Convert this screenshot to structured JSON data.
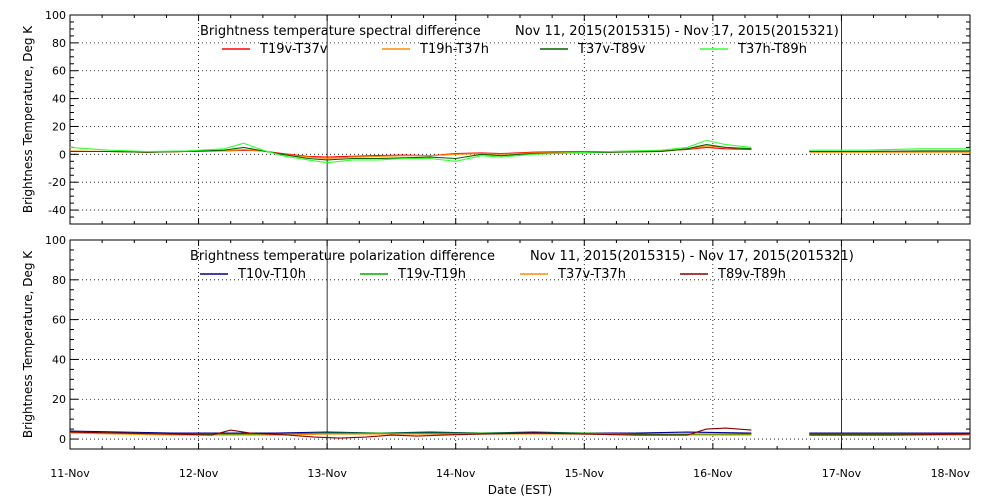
{
  "chart_data": [
    {
      "type": "line",
      "title": "Brightness temperature spectral difference",
      "date_range": "Nov 11, 2015(2015315) - Nov 17, 2015(2015321)",
      "ylabel": "Brightness Temperature, Deg K",
      "xlabel": "",
      "ylim": [
        -50,
        100
      ],
      "yticks": [
        -40,
        -20,
        0,
        20,
        40,
        60,
        80,
        100
      ],
      "xlim": [
        0,
        7
      ],
      "grid": true,
      "series": [
        {
          "name": "T19v-T37v",
          "color": "#ff0000",
          "segments": [
            [
              [
                0.0,
                2
              ],
              [
                0.3,
                2
              ],
              [
                0.6,
                1.5
              ],
              [
                0.9,
                2
              ],
              [
                1.2,
                2.5
              ],
              [
                1.35,
                3
              ],
              [
                1.5,
                2.5
              ],
              [
                1.65,
                0.5
              ],
              [
                1.85,
                -1.5
              ],
              [
                2.0,
                -2
              ],
              [
                2.15,
                -1.5
              ],
              [
                2.35,
                -1
              ],
              [
                2.6,
                -0.5
              ],
              [
                2.8,
                -1
              ],
              [
                3.0,
                0.5
              ],
              [
                3.2,
                1
              ],
              [
                3.35,
                0.5
              ],
              [
                3.6,
                1.5
              ],
              [
                3.9,
                2
              ],
              [
                4.2,
                2
              ],
              [
                4.6,
                2.5
              ],
              [
                4.8,
                3.5
              ],
              [
                4.95,
                5
              ],
              [
                5.1,
                4
              ],
              [
                5.3,
                3.5
              ]
            ],
            [
              [
                5.75,
                2
              ],
              [
                6.2,
                2
              ],
              [
                6.6,
                2
              ],
              [
                7.0,
                2
              ]
            ]
          ]
        },
        {
          "name": "T19h-T37h",
          "color": "#ff8c00",
          "segments": [
            [
              [
                0.0,
                2.5
              ],
              [
                0.3,
                2
              ],
              [
                0.6,
                1.5
              ],
              [
                0.9,
                2
              ],
              [
                1.2,
                2.5
              ],
              [
                1.35,
                3.5
              ],
              [
                1.5,
                2.5
              ],
              [
                1.65,
                0
              ],
              [
                1.85,
                -2
              ],
              [
                2.0,
                -3
              ],
              [
                2.2,
                -2
              ],
              [
                2.4,
                -1.5
              ],
              [
                2.6,
                -1
              ],
              [
                2.8,
                -1
              ],
              [
                3.0,
                0
              ],
              [
                3.2,
                0.5
              ],
              [
                3.35,
                0
              ],
              [
                3.6,
                1
              ],
              [
                3.9,
                1.5
              ],
              [
                4.2,
                1.5
              ],
              [
                4.6,
                2
              ],
              [
                4.8,
                4
              ],
              [
                4.95,
                6
              ],
              [
                5.1,
                5
              ],
              [
                5.3,
                4
              ]
            ],
            [
              [
                5.75,
                1.5
              ],
              [
                6.2,
                1.5
              ],
              [
                6.6,
                1.5
              ],
              [
                7.0,
                1.5
              ]
            ]
          ]
        },
        {
          "name": "T37v-T89v",
          "color": "#006400",
          "segments": [
            [
              [
                0.0,
                2
              ],
              [
                0.3,
                2
              ],
              [
                0.6,
                1.5
              ],
              [
                0.9,
                2
              ],
              [
                1.2,
                3
              ],
              [
                1.35,
                5
              ],
              [
                1.5,
                2.5
              ],
              [
                1.65,
                0
              ],
              [
                1.85,
                -3
              ],
              [
                2.0,
                -4
              ],
              [
                2.2,
                -3
              ],
              [
                2.4,
                -3
              ],
              [
                2.6,
                -2.5
              ],
              [
                2.8,
                -2
              ],
              [
                3.0,
                -3
              ],
              [
                3.2,
                0
              ],
              [
                3.35,
                -1
              ],
              [
                3.6,
                0.5
              ],
              [
                3.9,
                1
              ],
              [
                4.2,
                1.5
              ],
              [
                4.6,
                2
              ],
              [
                4.8,
                4
              ],
              [
                4.95,
                7
              ],
              [
                5.1,
                5
              ],
              [
                5.3,
                4
              ]
            ],
            [
              [
                5.75,
                2
              ],
              [
                6.2,
                2
              ],
              [
                6.6,
                2.5
              ],
              [
                7.0,
                2.5
              ]
            ]
          ]
        },
        {
          "name": "T37h-T89h",
          "color": "#33ff33",
          "segments": [
            [
              [
                0.0,
                5
              ],
              [
                0.3,
                3
              ],
              [
                0.6,
                2
              ],
              [
                0.9,
                2.5
              ],
              [
                1.2,
                4
              ],
              [
                1.35,
                8
              ],
              [
                1.5,
                3
              ],
              [
                1.65,
                -1
              ],
              [
                1.85,
                -4
              ],
              [
                2.0,
                -6
              ],
              [
                2.2,
                -4
              ],
              [
                2.4,
                -4
              ],
              [
                2.6,
                -3
              ],
              [
                2.8,
                -3
              ],
              [
                3.0,
                -5
              ],
              [
                3.2,
                -1
              ],
              [
                3.35,
                -2
              ],
              [
                3.6,
                0
              ],
              [
                3.9,
                1
              ],
              [
                4.2,
                2
              ],
              [
                4.6,
                3
              ],
              [
                4.8,
                5
              ],
              [
                4.95,
                10
              ],
              [
                5.1,
                7
              ],
              [
                5.3,
                5
              ]
            ],
            [
              [
                5.75,
                3
              ],
              [
                6.2,
                3
              ],
              [
                6.6,
                4
              ],
              [
                7.0,
                4
              ]
            ]
          ]
        }
      ]
    },
    {
      "type": "line",
      "title": "Brightness temperature polarization difference",
      "date_range": "Nov 11, 2015(2015315) - Nov 17, 2015(2015321)",
      "ylabel": "Brightness Temperature, Deg K",
      "xlabel": "Date (EST)",
      "ylim": [
        -5,
        100
      ],
      "yticks": [
        0,
        20,
        40,
        60,
        80,
        100
      ],
      "xlim": [
        0,
        7
      ],
      "xticks": [
        "11-Nov",
        "12-Nov",
        "13-Nov",
        "14-Nov",
        "15-Nov",
        "16-Nov",
        "17-Nov",
        "18-Nov"
      ],
      "grid": true,
      "series": [
        {
          "name": "T10v-T10h",
          "color": "#00008b",
          "segments": [
            [
              [
                0.0,
                4
              ],
              [
                0.4,
                3.5
              ],
              [
                0.8,
                3
              ],
              [
                1.2,
                3
              ],
              [
                1.6,
                3
              ],
              [
                2.0,
                3.5
              ],
              [
                2.4,
                3
              ],
              [
                2.8,
                3.5
              ],
              [
                3.2,
                3
              ],
              [
                3.6,
                3.5
              ],
              [
                4.0,
                3
              ],
              [
                4.4,
                3
              ],
              [
                4.8,
                3.5
              ],
              [
                5.3,
                3
              ]
            ],
            [
              [
                5.75,
                3
              ],
              [
                6.4,
                3
              ],
              [
                7.0,
                3
              ]
            ]
          ]
        },
        {
          "name": "T19v-T19h",
          "color": "#00aa00",
          "segments": [
            [
              [
                0.0,
                3.5
              ],
              [
                0.4,
                3
              ],
              [
                0.8,
                2.5
              ],
              [
                1.2,
                2.5
              ],
              [
                1.6,
                2.5
              ],
              [
                2.0,
                3
              ],
              [
                2.4,
                3
              ],
              [
                2.8,
                3
              ],
              [
                3.2,
                3
              ],
              [
                3.6,
                3
              ],
              [
                4.0,
                3
              ],
              [
                4.4,
                2.5
              ],
              [
                4.8,
                2.5
              ],
              [
                5.3,
                2.5
              ]
            ],
            [
              [
                5.75,
                2.5
              ],
              [
                6.4,
                2.5
              ],
              [
                7.0,
                2.5
              ]
            ]
          ]
        },
        {
          "name": "T37v-T37h",
          "color": "#ff8c00",
          "segments": [
            [
              [
                0.0,
                3
              ],
              [
                0.4,
                2.5
              ],
              [
                0.8,
                2
              ],
              [
                1.2,
                2
              ],
              [
                1.6,
                2
              ],
              [
                2.0,
                2.5
              ],
              [
                2.4,
                2.5
              ],
              [
                2.8,
                2.5
              ],
              [
                3.2,
                2.5
              ],
              [
                3.6,
                2.5
              ],
              [
                4.0,
                2.5
              ],
              [
                4.4,
                2
              ],
              [
                4.8,
                2
              ],
              [
                5.3,
                2
              ]
            ],
            [
              [
                5.75,
                2
              ],
              [
                6.4,
                2
              ],
              [
                7.0,
                2
              ]
            ]
          ]
        },
        {
          "name": "T89v-T89h",
          "color": "#8b0000",
          "segments": [
            [
              [
                0.0,
                3.5
              ],
              [
                0.4,
                3
              ],
              [
                0.8,
                2.5
              ],
              [
                1.1,
                2
              ],
              [
                1.25,
                4.5
              ],
              [
                1.4,
                3
              ],
              [
                1.7,
                2
              ],
              [
                1.9,
                1
              ],
              [
                2.1,
                0.5
              ],
              [
                2.3,
                1
              ],
              [
                2.5,
                2
              ],
              [
                2.7,
                1.5
              ],
              [
                2.9,
                2
              ],
              [
                3.2,
                2.5
              ],
              [
                3.6,
                3
              ],
              [
                4.0,
                2.5
              ],
              [
                4.4,
                2
              ],
              [
                4.8,
                2
              ],
              [
                4.95,
                5
              ],
              [
                5.1,
                5.5
              ],
              [
                5.3,
                4.5
              ]
            ],
            [
              [
                5.75,
                2
              ],
              [
                6.4,
                2
              ],
              [
                7.0,
                2.5
              ]
            ]
          ]
        }
      ]
    }
  ]
}
